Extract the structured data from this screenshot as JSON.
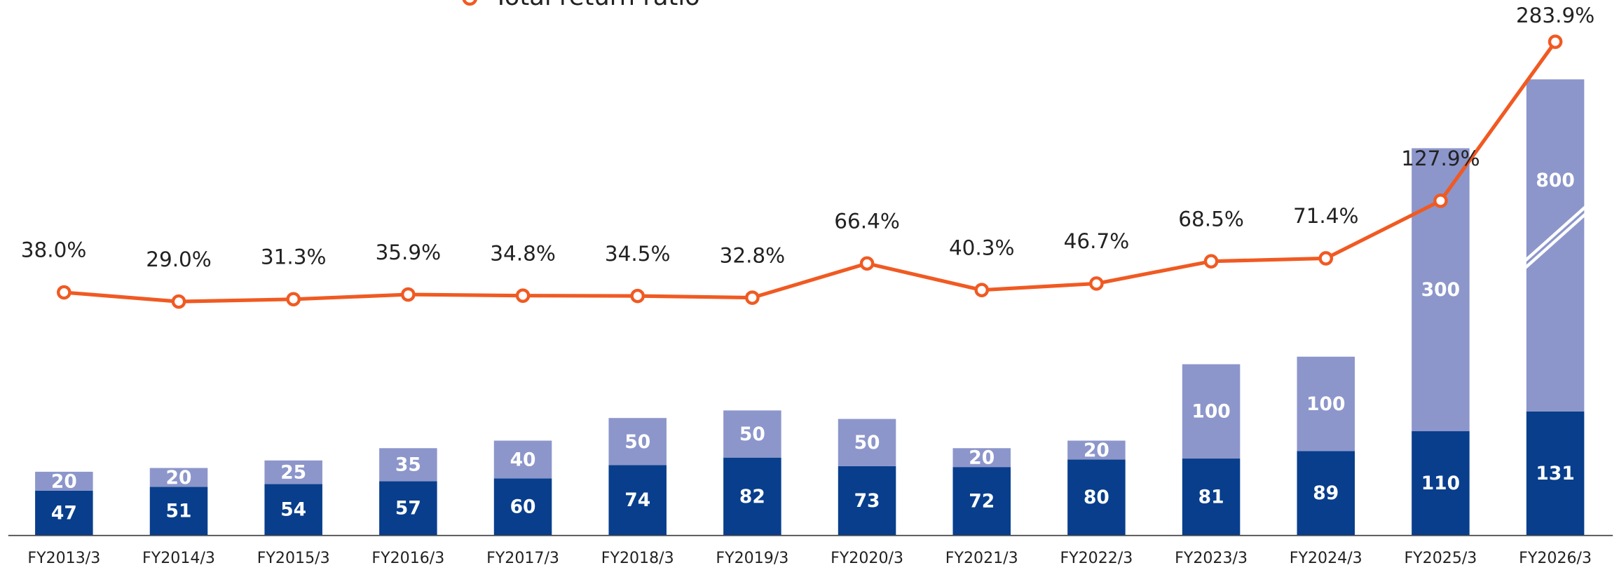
{
  "chart_data": {
    "type": "bar",
    "categories": [
      "FY2013/3",
      "FY2014/3",
      "FY2015/3",
      "FY2016/3",
      "FY2017/3",
      "FY2018/3",
      "FY2019/3",
      "FY2020/3",
      "FY2021/3",
      "FY2022/3",
      "FY2023/3",
      "FY2024/3",
      "FY2025/3",
      "FY2026/3"
    ],
    "series": [
      {
        "color": "#083e8c",
        "values": [
          47,
          51,
          54,
          57,
          60,
          74,
          82,
          73,
          72,
          80,
          81,
          89,
          110,
          131
        ]
      },
      {
        "color": "#8c96cb",
        "values": [
          20,
          20,
          25,
          35,
          40,
          50,
          50,
          50,
          20,
          20,
          100,
          100,
          300,
          800
        ]
      },
      {
        "name": "Total return ratio",
        "type": "line",
        "axis": "y2",
        "color": "#f05a22",
        "values": [
          38.0,
          29.0,
          31.3,
          35.9,
          34.8,
          34.5,
          32.8,
          66.4,
          40.3,
          46.7,
          68.5,
          71.4,
          127.9,
          283.9
        ],
        "value_labels": [
          "38.0%",
          "29.0%",
          "31.3%",
          "35.9%",
          "34.8%",
          "34.5%",
          "32.8%",
          "66.4%",
          "40.3%",
          "46.7%",
          "68.5%",
          "71.4%",
          "127.9%",
          "283.9%"
        ]
      }
    ],
    "stacked": true,
    "ylim": [
      0,
      483
    ],
    "y2lim": [
      -200,
      247
    ],
    "axis_break": true,
    "legend": "top"
  }
}
